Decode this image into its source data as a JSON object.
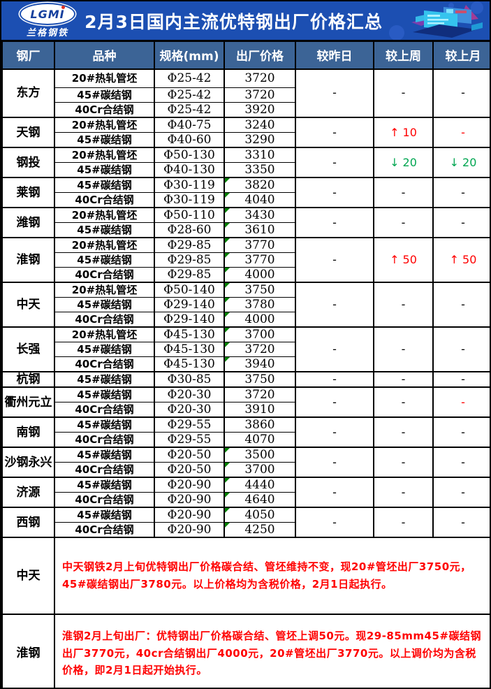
{
  "banner": {
    "logo_text": "LGMI",
    "logo_subtext": "兰格钢铁",
    "title": "2月3日国内主流优特钢出厂价格汇总"
  },
  "colors": {
    "banner_bg": "#1c4fb2",
    "table_header_bg": "#3c6496",
    "change_up_red": "#ff0000",
    "change_down_green": "#00a651",
    "note_text_red": "#ff0000",
    "cell_flag_green": "#008000"
  },
  "chart_data": {
    "type": "table",
    "title": "2月3日国内主流优特钢出厂价格汇总",
    "columns": [
      "钢厂",
      "品种",
      "规格(mm)",
      "出厂价格",
      "较昨日",
      "较上周",
      "较上月"
    ],
    "groups": [
      {
        "mill": "东方",
        "rows": [
          {
            "variety": "20#热轧管坯",
            "spec": "Φ25-42",
            "price": 3720,
            "flag": false
          },
          {
            "variety": "45#碳结钢",
            "spec": "Φ25-42",
            "price": 3720,
            "flag": false
          },
          {
            "variety": "40Cr合结钢",
            "spec": "Φ25-42",
            "price": 3920,
            "flag": false
          }
        ],
        "changes": [
          {
            "text": "-",
            "color": "#000000"
          },
          {
            "text": "-",
            "color": "#000000"
          },
          {
            "text": "-",
            "color": "#000000"
          }
        ]
      },
      {
        "mill": "天钢",
        "rows": [
          {
            "variety": "20#热轧管坯",
            "spec": "Φ40-75",
            "price": 3240,
            "flag": false
          },
          {
            "variety": "45#碳结钢",
            "spec": "Φ40-60",
            "price": 3290,
            "flag": false
          }
        ],
        "changes": [
          {
            "text": "-",
            "color": "#000000"
          },
          {
            "text": "↑ 10",
            "color": "#ff0000"
          },
          {
            "text": "-",
            "color": "#ff0000"
          }
        ]
      },
      {
        "mill": "钢投",
        "rows": [
          {
            "variety": "20#热轧管坯",
            "spec": "Φ50-130",
            "price": 3310,
            "flag": false
          },
          {
            "variety": "45#碳结钢",
            "spec": "Φ40-130",
            "price": 3350,
            "flag": false
          }
        ],
        "changes": [
          {
            "text": "-",
            "color": "#000000"
          },
          {
            "text": "↓ 20",
            "color": "#00a651"
          },
          {
            "text": "↓ 20",
            "color": "#00a651"
          }
        ]
      },
      {
        "mill": "莱钢",
        "rows": [
          {
            "variety": "45#碳结钢",
            "spec": "Φ30-119",
            "price": 3820,
            "flag": true
          },
          {
            "variety": "40Cr合结钢",
            "spec": "Φ30-119",
            "price": 4040,
            "flag": true
          }
        ],
        "changes": [
          {
            "text": "-",
            "color": "#000000"
          },
          {
            "text": "-",
            "color": "#000000"
          },
          {
            "text": "-",
            "color": "#000000"
          }
        ]
      },
      {
        "mill": "潍钢",
        "rows": [
          {
            "variety": "20#热轧管坯",
            "spec": "Φ50-110",
            "price": 3430,
            "flag": true
          },
          {
            "variety": "45#碳结钢",
            "spec": "Φ28-60",
            "price": 3610,
            "flag": true
          }
        ],
        "changes": [
          {
            "text": "-",
            "color": "#000000"
          },
          {
            "text": "-",
            "color": "#000000"
          },
          {
            "text": "-",
            "color": "#000000"
          }
        ]
      },
      {
        "mill": "淮钢",
        "rows": [
          {
            "variety": "20#热轧管坯",
            "spec": "Φ29-85",
            "price": 3770,
            "flag": true
          },
          {
            "variety": "45#碳结钢",
            "spec": "Φ29-85",
            "price": 3770,
            "flag": true
          },
          {
            "variety": "40Cr合结钢",
            "spec": "Φ29-85",
            "price": 4000,
            "flag": true
          }
        ],
        "changes": [
          {
            "text": "-",
            "color": "#000000"
          },
          {
            "text": "↑ 50",
            "color": "#ff0000"
          },
          {
            "text": "↑ 50",
            "color": "#ff0000"
          }
        ]
      },
      {
        "mill": "中天",
        "rows": [
          {
            "variety": "20#热轧管坯",
            "spec": "Φ50-140",
            "price": 3750,
            "flag": true
          },
          {
            "variety": "45#碳结钢",
            "spec": "Φ29-140",
            "price": 3780,
            "flag": true
          },
          {
            "variety": "40Cr合结钢",
            "spec": "Φ29-140",
            "price": 4000,
            "flag": true
          }
        ],
        "changes": [
          {
            "text": "-",
            "color": "#000000"
          },
          {
            "text": "-",
            "color": "#000000"
          },
          {
            "text": "-",
            "color": "#000000"
          }
        ]
      },
      {
        "mill": "长强",
        "rows": [
          {
            "variety": "20#热轧管坯",
            "spec": "Φ45-130",
            "price": 3700,
            "flag": true
          },
          {
            "variety": "45#碳结钢",
            "spec": "Φ45-130",
            "price": 3720,
            "flag": true
          },
          {
            "variety": "40Cr合结钢",
            "spec": "Φ45-130",
            "price": 3940,
            "flag": true
          }
        ],
        "changes": [
          {
            "text": "-",
            "color": "#000000"
          },
          {
            "text": "-",
            "color": "#000000"
          },
          {
            "text": "-",
            "color": "#000000"
          }
        ]
      },
      {
        "mill": "杭钢",
        "rows": [
          {
            "variety": "45#碳结钢",
            "spec": "Φ30-85",
            "price": 3750,
            "flag": false
          }
        ],
        "changes": [
          {
            "text": "-",
            "color": "#000000"
          },
          {
            "text": "-",
            "color": "#000000"
          },
          {
            "text": "-",
            "color": "#000000"
          }
        ]
      },
      {
        "mill": "衢州元立",
        "rows": [
          {
            "variety": "45#碳结钢",
            "spec": "Φ20-30",
            "price": 3720,
            "flag": false
          },
          {
            "variety": "40Cr合结钢",
            "spec": "Φ20-30",
            "price": 3910,
            "flag": false
          }
        ],
        "changes": [
          {
            "text": "-",
            "color": "#000000"
          },
          {
            "text": "-",
            "color": "#000000"
          },
          {
            "text": "-",
            "color": "#ff0000"
          }
        ]
      },
      {
        "mill": "南钢",
        "rows": [
          {
            "variety": "45#碳结钢",
            "spec": "Φ29-55",
            "price": 3860,
            "flag": false
          },
          {
            "variety": "40Cr合结钢",
            "spec": "Φ29-55",
            "price": 4070,
            "flag": false
          }
        ],
        "changes": [
          {
            "text": "-",
            "color": "#000000"
          },
          {
            "text": "-",
            "color": "#000000"
          },
          {
            "text": "-",
            "color": "#000000"
          }
        ]
      },
      {
        "mill": "沙钢永兴",
        "rows": [
          {
            "variety": "45#碳结钢",
            "spec": "Φ20-50",
            "price": 3500,
            "flag": true
          },
          {
            "variety": "40Cr合结钢",
            "spec": "Φ20-50",
            "price": 3700,
            "flag": true
          }
        ],
        "changes": [
          {
            "text": "-",
            "color": "#000000"
          },
          {
            "text": "-",
            "color": "#000000"
          },
          {
            "text": "-",
            "color": "#000000"
          }
        ]
      },
      {
        "mill": "济源",
        "rows": [
          {
            "variety": "45#碳结钢",
            "spec": "Φ20-90",
            "price": 4440,
            "flag": true
          },
          {
            "variety": "40Cr合结钢",
            "spec": "Φ20-90",
            "price": 4640,
            "flag": true
          }
        ],
        "changes": [
          {
            "text": "-",
            "color": "#000000"
          },
          {
            "text": "-",
            "color": "#000000"
          },
          {
            "text": "-",
            "color": "#000000"
          }
        ]
      },
      {
        "mill": "西钢",
        "rows": [
          {
            "variety": "45#碳结钢",
            "spec": "Φ20-90",
            "price": 4050,
            "flag": true
          },
          {
            "variety": "40Cr合结钢",
            "spec": "Φ20-90",
            "price": 4250,
            "flag": true
          }
        ],
        "changes": [
          {
            "text": "-",
            "color": "#000000"
          },
          {
            "text": "-",
            "color": "#000000"
          },
          {
            "text": "-",
            "color": "#000000"
          }
        ]
      }
    ]
  },
  "notes": [
    {
      "mill": "中天",
      "text": "中天钢铁2月上旬优特钢出厂价格碳合结、管坯维持不变，现20#管坯出厂3750元，45#碳结钢出厂3780元。以上价格均为含税价格，2月1日起执行。"
    },
    {
      "mill": "淮钢",
      "text": "淮钢2月上旬出厂：优特钢出厂价格碳合结、管坯上调50元。现29-85mm45#碳结钢出厂3770元，40cr合结钢出厂4000元，20#管坯出厂3770元。以上调价均为含税价格，即2月1日起开始执行。"
    }
  ]
}
